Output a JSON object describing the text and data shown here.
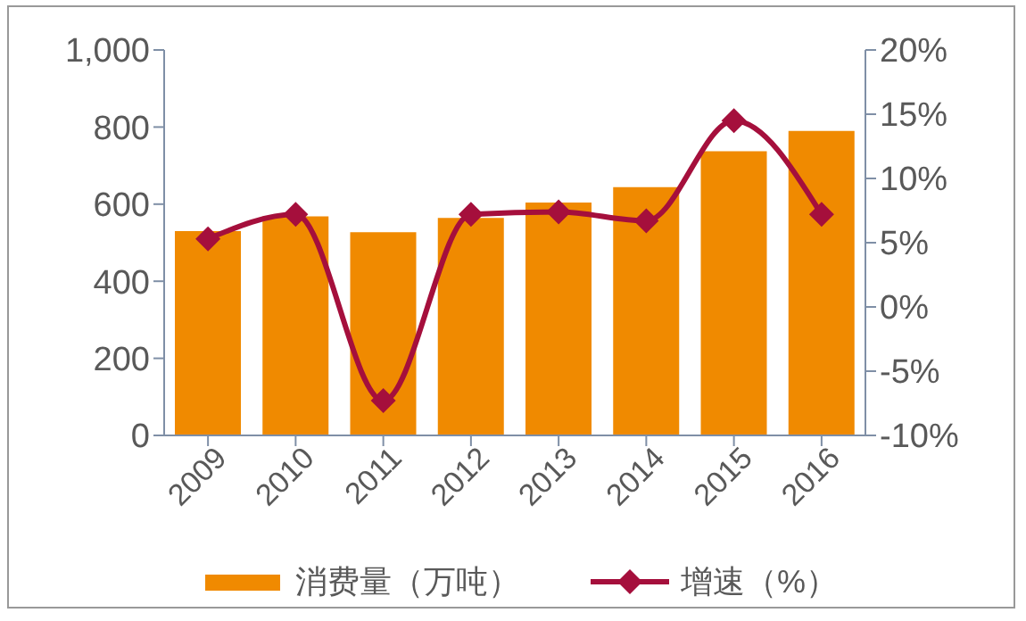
{
  "chart_data": {
    "type": "bar",
    "categories": [
      "2009",
      "2010",
      "2011",
      "2012",
      "2013",
      "2014",
      "2015",
      "2016"
    ],
    "series": [
      {
        "name": "消费量（万吨）",
        "color": "#f08a00",
        "values": [
          530,
          568,
          527,
          564,
          604,
          644,
          737,
          790
        ]
      },
      {
        "name": "增速（%）",
        "type": "line",
        "axis": "y2",
        "color": "#a50f3c",
        "marker": "diamond",
        "values": [
          5.3,
          7.2,
          -7.3,
          7.2,
          7.4,
          6.7,
          14.5,
          7.2
        ]
      }
    ],
    "ylim": [
      0,
      1000
    ],
    "yticks": [
      0,
      200,
      400,
      600,
      800,
      {
        "value": 1000,
        "label": "1,000"
      }
    ],
    "y2lim": [
      -10,
      20
    ],
    "y2ticks": [
      {
        "value": -10,
        "label": "-10%"
      },
      {
        "value": -5,
        "label": "-5%"
      },
      {
        "value": 0,
        "label": "0%"
      },
      {
        "value": 5,
        "label": "5%"
      },
      {
        "value": 10,
        "label": "10%"
      },
      {
        "value": 15,
        "label": "15%"
      },
      {
        "value": 20,
        "label": "20%"
      }
    ],
    "grid": false,
    "legend": "bottom"
  }
}
